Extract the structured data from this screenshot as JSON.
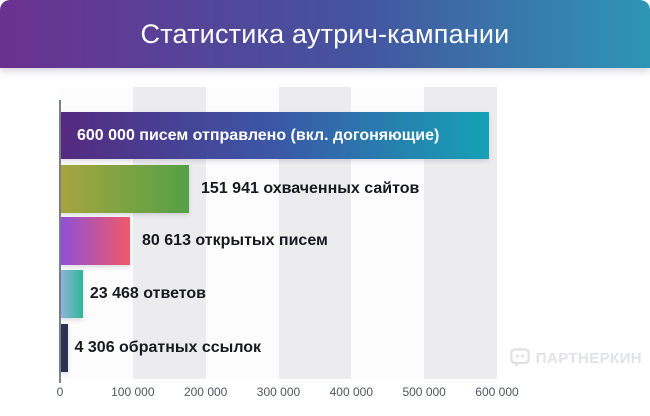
{
  "header": {
    "title": "Статистика аутрич-кампании"
  },
  "chart_data": {
    "type": "bar",
    "orientation": "horizontal",
    "title": "Статистика аутрич-кампании",
    "xlabel": "",
    "ylabel": "",
    "xlim": [
      0,
      600000
    ],
    "x_ticks": [
      "0",
      "100 000",
      "200 000",
      "300 000",
      "400 000",
      "500 000",
      "600 000"
    ],
    "grid": "alternating-vertical-bands",
    "legend": "none",
    "bars": [
      {
        "label": "600 000 писем отправлено (вкл. догоняющие)",
        "value": 600000,
        "label_placement": "inside",
        "label_color": "#ffffff",
        "gradient": [
          "#542a80",
          "#3b57a7",
          "#16a1b5"
        ]
      },
      {
        "label": "151 941 охваченных сайтов",
        "value": 151941,
        "label_placement": "right",
        "label_color": "#17191f",
        "gradient": [
          "#a6a53e",
          "#55a047"
        ]
      },
      {
        "label": "80 613 открытых писем",
        "value": 80613,
        "label_placement": "right",
        "label_color": "#17191f",
        "gradient": [
          "#8f51d7",
          "#ef5968"
        ]
      },
      {
        "label": "23 468 ответов",
        "value": 23468,
        "label_placement": "right",
        "label_color": "#17191f",
        "gradient": [
          "#92b3d9",
          "#2cb795"
        ]
      },
      {
        "label": "4 306 обратных ссылок",
        "value": 4306,
        "label_placement": "right",
        "label_color": "#17191f",
        "gradient": [
          "#2b3252",
          "#2b3252"
        ]
      }
    ]
  },
  "watermark": {
    "text": "ПАРТНЕРКИН",
    "icon": "speech-bubble-icon"
  },
  "colors": {
    "header_gradient": [
      "#6a3191",
      "#44549f",
      "#2e96b5"
    ],
    "band": "#ececee",
    "plot_background": "#fcfcfd",
    "axis_line": "#7d828c",
    "tick_text": "#515560"
  }
}
